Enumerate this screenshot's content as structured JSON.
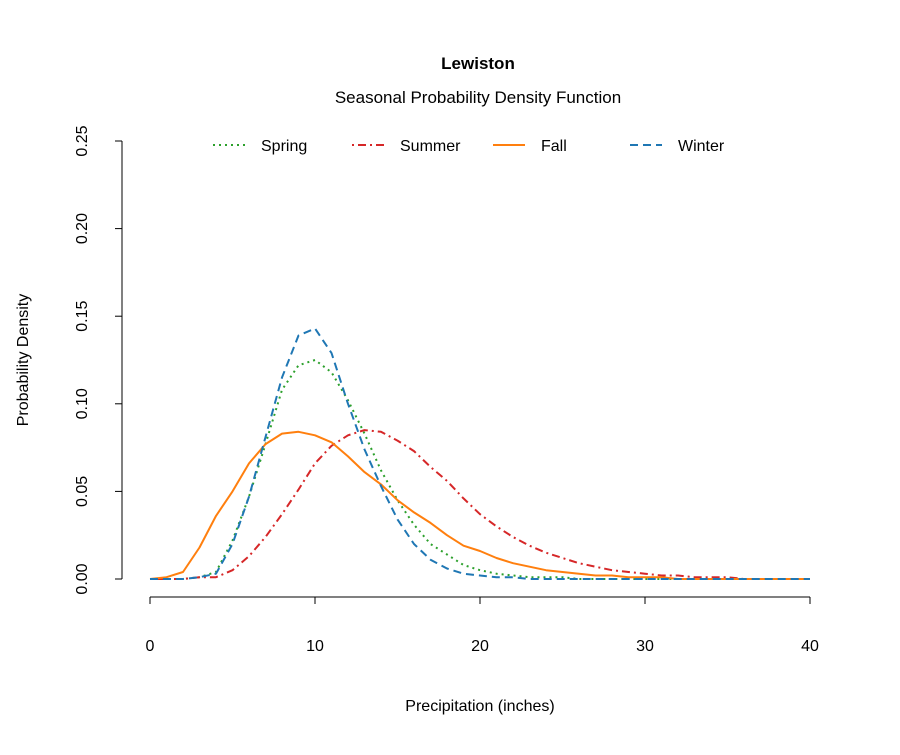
{
  "chart_data": {
    "type": "line",
    "title": "Lewiston",
    "subtitle": "Seasonal Probability Density Function",
    "xlabel": "Precipitation (inches)",
    "ylabel": "Probability Density",
    "xlim": [
      0,
      40
    ],
    "ylim": [
      0,
      0.25
    ],
    "x_ticks": [
      "0",
      "10",
      "20",
      "30",
      "40"
    ],
    "y_ticks": [
      "0.00",
      "0.05",
      "0.10",
      "0.15",
      "0.20",
      "0.25"
    ],
    "grid": false,
    "legend_position": "top",
    "x": [
      0,
      1,
      2,
      3,
      4,
      5,
      6,
      7,
      8,
      9,
      10,
      11,
      12,
      13,
      14,
      15,
      16,
      17,
      18,
      19,
      20,
      21,
      22,
      23,
      24,
      25,
      26,
      27,
      28,
      29,
      30,
      31,
      32,
      33,
      34,
      35,
      36,
      37,
      38,
      39,
      40
    ],
    "series": [
      {
        "name": "Spring",
        "color": "#2ca02c",
        "dash": "dotted",
        "values": [
          0,
          0,
          0,
          0.001,
          0.004,
          0.022,
          0.047,
          0.077,
          0.108,
          0.122,
          0.125,
          0.118,
          0.102,
          0.083,
          0.062,
          0.045,
          0.031,
          0.02,
          0.014,
          0.008,
          0.005,
          0.003,
          0.002,
          0.001,
          0.001,
          0.001,
          0,
          0,
          0,
          0,
          0,
          0,
          0,
          0,
          0,
          0,
          0,
          0,
          0,
          0,
          0
        ]
      },
      {
        "name": "Summer",
        "color": "#d62728",
        "dash": "dotdash",
        "values": [
          0,
          0,
          0,
          0.001,
          0.001,
          0.005,
          0.013,
          0.024,
          0.037,
          0.051,
          0.066,
          0.076,
          0.082,
          0.085,
          0.084,
          0.079,
          0.073,
          0.064,
          0.056,
          0.046,
          0.037,
          0.03,
          0.024,
          0.019,
          0.015,
          0.012,
          0.009,
          0.007,
          0.005,
          0.004,
          0.003,
          0.002,
          0.002,
          0.001,
          0.001,
          0.001,
          0,
          0,
          0,
          0,
          0
        ]
      },
      {
        "name": "Fall",
        "color": "#ff7f0e",
        "dash": "solid",
        "values": [
          0,
          0.001,
          0.004,
          0.018,
          0.036,
          0.05,
          0.066,
          0.077,
          0.083,
          0.084,
          0.082,
          0.078,
          0.07,
          0.061,
          0.054,
          0.045,
          0.038,
          0.032,
          0.025,
          0.019,
          0.016,
          0.012,
          0.009,
          0.007,
          0.005,
          0.004,
          0.003,
          0.002,
          0.002,
          0.001,
          0.001,
          0.001,
          0,
          0,
          0,
          0,
          0,
          0,
          0,
          0,
          0
        ]
      },
      {
        "name": "Winter",
        "color": "#1f77b4",
        "dash": "dashed",
        "values": [
          0,
          0,
          0,
          0.001,
          0.003,
          0.02,
          0.047,
          0.081,
          0.115,
          0.139,
          0.143,
          0.129,
          0.1,
          0.074,
          0.053,
          0.034,
          0.02,
          0.011,
          0.006,
          0.003,
          0.002,
          0.001,
          0.001,
          0,
          0,
          0,
          0,
          0,
          0,
          0,
          0,
          0,
          0,
          0,
          0,
          0,
          0,
          0,
          0,
          0,
          0
        ]
      }
    ]
  }
}
